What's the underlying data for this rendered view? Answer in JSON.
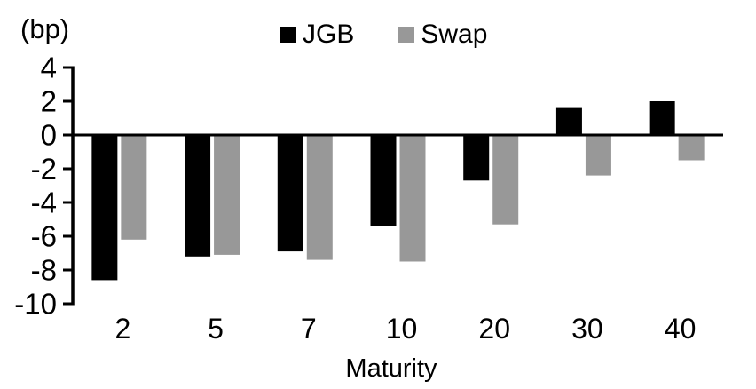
{
  "chart": {
    "unit_label": "(bp)",
    "xlabel": "Maturity",
    "legend": [
      {
        "label": "JGB",
        "color": "#000000"
      },
      {
        "label": "Swap",
        "color": "#989898"
      }
    ]
  },
  "chart_data": {
    "type": "bar",
    "title": "",
    "categories": [
      "2",
      "5",
      "7",
      "10",
      "20",
      "30",
      "40"
    ],
    "series": [
      {
        "name": "JGB",
        "color": "#000000",
        "values": [
          -8.6,
          -7.2,
          -6.9,
          -5.4,
          -2.7,
          1.6,
          2.0
        ]
      },
      {
        "name": "Swap",
        "color": "#989898",
        "values": [
          -6.2,
          -7.1,
          -7.4,
          -7.5,
          -5.3,
          -2.4,
          -1.5
        ]
      }
    ],
    "xlabel": "Maturity",
    "ylabel": "(bp)",
    "ylim": [
      -10,
      4
    ],
    "ytick_step": 2,
    "yticks": [
      4,
      2,
      0,
      -2,
      -4,
      -6,
      -8,
      -10
    ],
    "grid": false,
    "legend_position": "top"
  }
}
